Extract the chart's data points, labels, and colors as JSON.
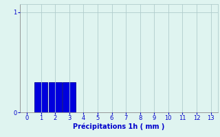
{
  "title": "",
  "xlabel": "Précipitations 1h ( mm )",
  "bar_values": [
    0.3,
    0.3,
    0.3
  ],
  "bar_positions": [
    1,
    2,
    3
  ],
  "bar_color": "#0000dd",
  "bar_edge_color": "#000099",
  "bar_width": 0.92,
  "xlim": [
    -0.5,
    13.5
  ],
  "ylim": [
    0,
    1.08
  ],
  "yticks": [
    0,
    1
  ],
  "xticks": [
    0,
    1,
    2,
    3,
    4,
    5,
    6,
    7,
    8,
    9,
    10,
    11,
    12,
    13
  ],
  "background_color": "#dff4f0",
  "grid_color": "#b0cccc",
  "tick_color": "#0000cc",
  "label_color": "#0000cc",
  "label_fontsize": 7.0,
  "tick_fontsize": 6.0
}
